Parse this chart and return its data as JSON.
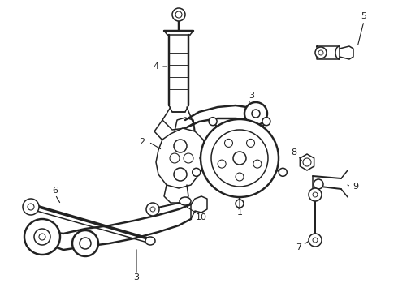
{
  "bg_color": "#ffffff",
  "line_color": "#222222",
  "figsize": [
    4.9,
    3.6
  ],
  "dpi": 100,
  "lw": 1.1
}
